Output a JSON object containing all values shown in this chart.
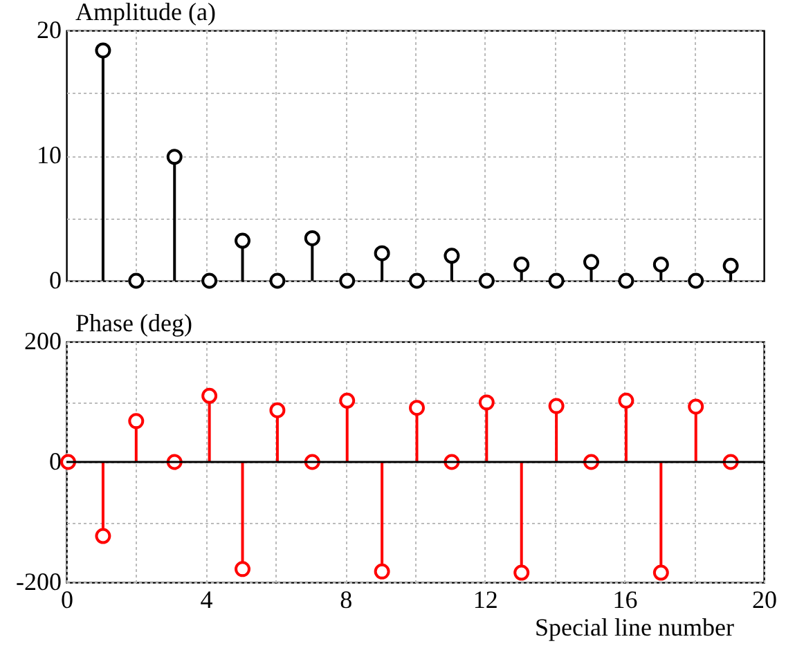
{
  "chart_data": [
    {
      "type": "lollipop",
      "ylabel": "Amplitude (a)",
      "x": [
        1.05,
        2,
        3.1,
        4.1,
        5.05,
        6.05,
        7.05,
        8.05,
        9.05,
        10.05,
        11.05,
        12.05,
        13.05,
        14.05,
        15.05,
        16.05,
        17.05,
        18.05,
        19.05
      ],
      "series": [
        {
          "color": "#000000",
          "values": [
            18.4,
            0,
            9.9,
            0,
            3.2,
            0,
            3.4,
            0,
            2.2,
            0,
            2.0,
            0,
            1.3,
            0,
            1.5,
            0,
            1.3,
            0,
            1.2
          ]
        }
      ],
      "xlim": [
        0,
        20
      ],
      "xticks": [
        {
          "value": 2,
          "label": null
        },
        {
          "value": 4,
          "label": null
        },
        {
          "value": 6,
          "label": null
        },
        {
          "value": 8,
          "label": null
        },
        {
          "value": 10,
          "label": null
        },
        {
          "value": 12,
          "label": null
        },
        {
          "value": 14,
          "label": null
        },
        {
          "value": 16,
          "label": null
        },
        {
          "value": 18,
          "label": null
        }
      ],
      "ylim": [
        0,
        20
      ],
      "yticks": [
        0,
        {
          "value": 5,
          "label": null
        },
        10,
        {
          "value": 15,
          "label": null
        },
        20
      ],
      "tick_labels": "y",
      "grid": true,
      "marker": "circle"
    },
    {
      "type": "lollipop",
      "ylabel": "Phase (deg)",
      "xlabel": "Special line number",
      "x": [
        0.05,
        1.05,
        2,
        3.1,
        4.1,
        5.05,
        6.05,
        7.05,
        8.05,
        9.05,
        10.05,
        11.05,
        12.05,
        13.05,
        14.05,
        15.05,
        16.05,
        17.05,
        18.05,
        19.05
      ],
      "series": [
        {
          "color": "#ff0000",
          "values": [
            0,
            -123,
            68,
            0,
            110,
            -178,
            86,
            0,
            102,
            -182,
            90,
            0,
            99,
            -184,
            93,
            0,
            102,
            -184,
            92,
            0
          ]
        }
      ],
      "xlim": [
        0,
        20
      ],
      "xticks": [
        0,
        {
          "value": 2,
          "label": null
        },
        4,
        {
          "value": 6,
          "label": null
        },
        8,
        {
          "value": 10,
          "label": null
        },
        12,
        {
          "value": 14,
          "label": null
        },
        16,
        {
          "value": 18,
          "label": null
        },
        20
      ],
      "ylim": [
        -200,
        200
      ],
      "yticks": [
        -200,
        {
          "value": -100,
          "label": null
        },
        0,
        {
          "value": 100,
          "label": null
        },
        200
      ],
      "grid": true,
      "marker": "circle",
      "ref_lines": [
        {
          "axis": "y",
          "value": 0,
          "color": "#000000"
        }
      ]
    }
  ]
}
